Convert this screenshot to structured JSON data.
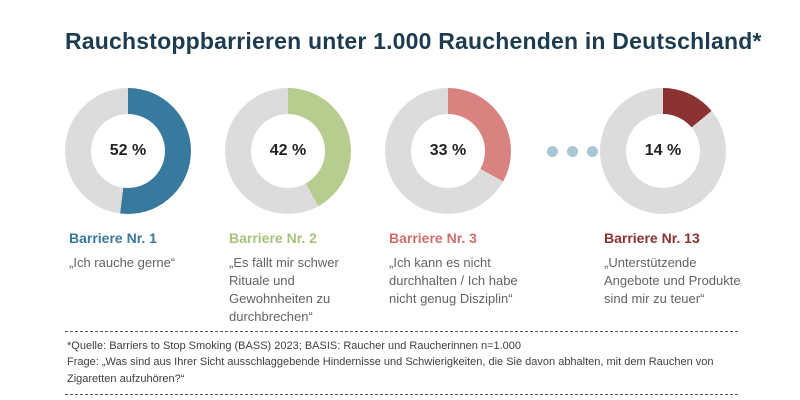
{
  "title": "Rauchstoppbarrieren unter 1.000 Rauchenden in Deutschland*",
  "colors": {
    "title": "#1d3c50",
    "donut_track": "#dcdcdc",
    "background": "#ffffff"
  },
  "chart_data": [
    {
      "type": "pie",
      "value": 52,
      "value_label": "52 %",
      "title": "Barriere Nr. 1",
      "quote": "„Ich rauche gerne“",
      "color": "#38799e",
      "label_color": "#38799e",
      "track_color": "#dcdcdc"
    },
    {
      "type": "pie",
      "value": 42,
      "value_label": "42 %",
      "title": "Barriere Nr. 2",
      "quote": "„Es fällt mir schwer Rituale und Gewohnheiten zu durchbrechen“",
      "color": "#b7cd90",
      "label_color": "#a8c279",
      "track_color": "#dcdcdc"
    },
    {
      "type": "pie",
      "value": 33,
      "value_label": "33 %",
      "title": "Barriere Nr. 3",
      "quote": "„Ich kann es nicht durchhalten / Ich habe nicht genug Disziplin“",
      "color": "#d98380",
      "label_color": "#cf6e6a",
      "track_color": "#dcdcdc"
    },
    {
      "type": "pie",
      "value": 14,
      "value_label": "14 %",
      "title": "Barriere Nr. 13",
      "quote": "„Unterstützende Angebote und Produkte sind mir zu teuer“",
      "color": "#8b3232",
      "label_color": "#8b3232",
      "track_color": "#dcdcdc"
    }
  ],
  "separator_dots": {
    "count": 3,
    "color": "#a9c6d6"
  },
  "footnote": {
    "line1": "*Quelle: Barriers to Stop Smoking (BASS) 2023; BASIS: Raucher und Raucherinnen n=1.000",
    "line2": "Frage: „Was sind aus Ihrer Sicht ausschlaggebende Hindernisse und Schwierigkeiten, die Sie davon abhalten, mit dem Rauchen von Zigaretten aufzuhören?“"
  }
}
